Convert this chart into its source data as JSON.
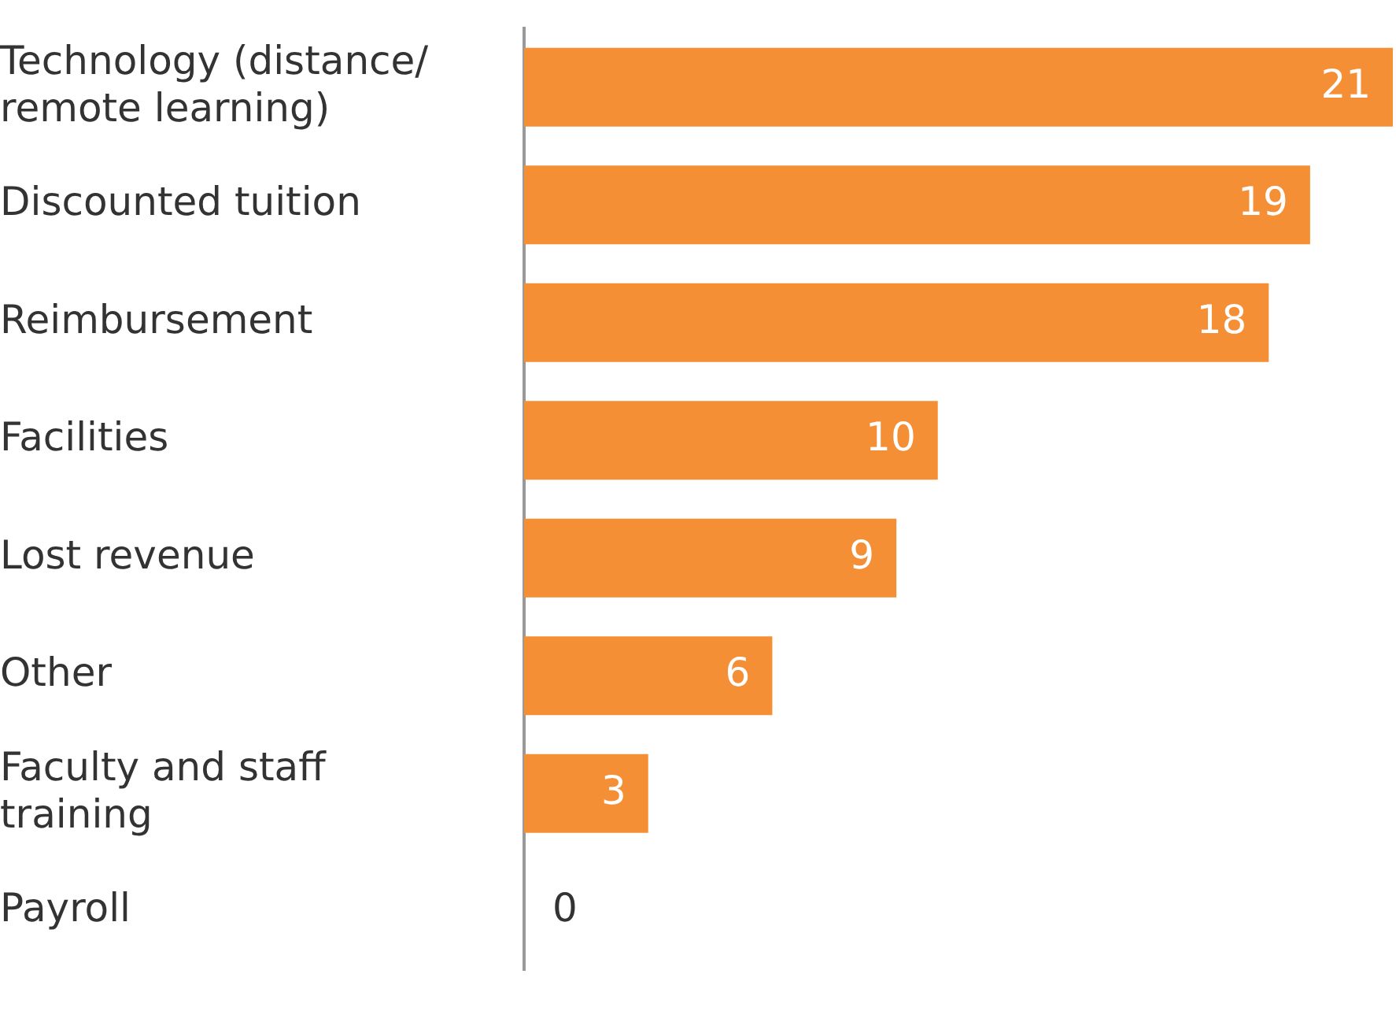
{
  "chart_data": {
    "type": "bar",
    "orientation": "horizontal",
    "categories": [
      "Technology (distance/remote learning)",
      "Discounted tuition",
      "Reimbursement",
      "Facilities",
      "Lost revenue",
      "Other",
      "Faculty and staff training",
      "Payroll"
    ],
    "values": [
      21,
      19,
      18,
      10,
      9,
      6,
      3,
      0
    ],
    "color": "#f58f35",
    "data_labels": true,
    "grid": false,
    "legend": false
  }
}
